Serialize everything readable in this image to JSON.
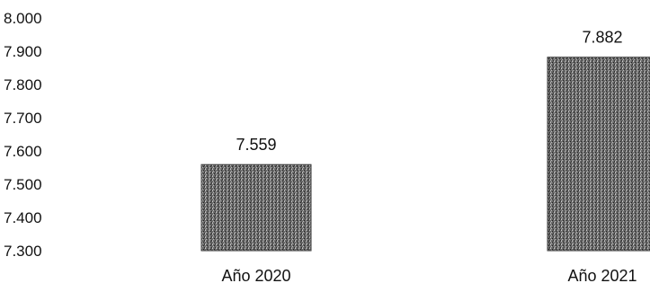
{
  "chart_data": {
    "type": "bar",
    "categories": [
      "Año 2020",
      "Año 2021"
    ],
    "values": [
      7559,
      7882
    ],
    "value_labels": [
      "7.559",
      "7.882"
    ],
    "ylim": [
      7300,
      8000
    ],
    "yticks": [
      7300,
      7400,
      7500,
      7600,
      7700,
      7800,
      7900,
      8000
    ],
    "ytick_labels": [
      "7.300",
      "7.400",
      "7.500",
      "7.600",
      "7.700",
      "7.800",
      "7.900",
      "8.000"
    ],
    "grid": false,
    "legend": "none",
    "bar_fill": "dark stippled gray"
  }
}
